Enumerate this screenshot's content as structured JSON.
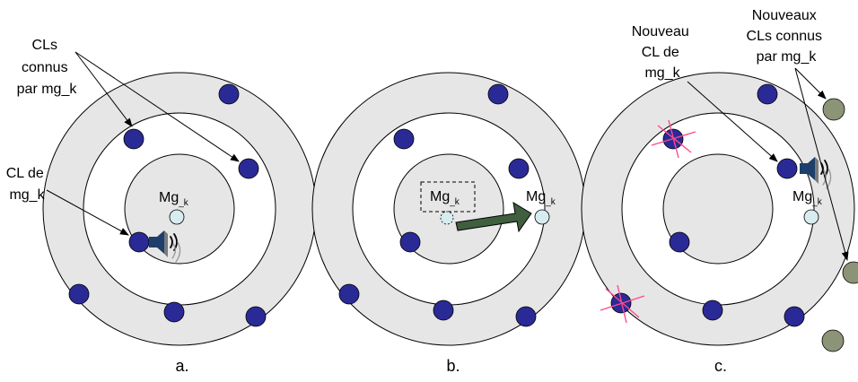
{
  "colors": {
    "ring_fill": "#e6e6e6",
    "node_blue": "#2a2a96",
    "node_olive": "#8c9478",
    "mg_node": "#d6ecef",
    "arrow_green": "#3f5f3f",
    "cross_pink": "#ff4a8c",
    "speaker": "#1e3f6b"
  },
  "icons": [
    "speaker-icon",
    "sound-waves-icon",
    "move-arrow-icon",
    "cross-mark-icon"
  ],
  "panels": [
    {
      "caption": "a.",
      "mg": {
        "base": "Mg",
        "sub": "_k"
      },
      "labels": {
        "known": [
          "CLs",
          "connus",
          "par mg_k"
        ],
        "cl": [
          "CL de",
          "mg_k"
        ]
      }
    },
    {
      "caption": "b.",
      "mg_old": {
        "base": "Mg",
        "sub": "_k"
      },
      "mg_new": {
        "base": "Mg",
        "sub": "_k"
      }
    },
    {
      "caption": "c.",
      "mg": {
        "base": "Mg",
        "sub": "_k"
      },
      "labels": {
        "new_cl": [
          "Nouveau",
          "CL de",
          "mg_k"
        ],
        "new_known": [
          "Nouveaux",
          "CLs connus",
          "par mg_k"
        ]
      }
    }
  ]
}
